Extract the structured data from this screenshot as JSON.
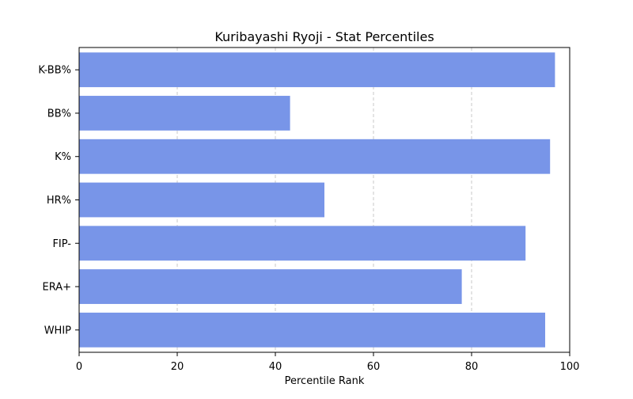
{
  "chart_data": {
    "type": "bar",
    "orientation": "horizontal",
    "title": "Kuribayashi Ryoji - Stat Percentiles",
    "xlabel": "Percentile Rank",
    "ylabel": "",
    "xlim": [
      0,
      100
    ],
    "xticks": [
      0,
      20,
      40,
      60,
      80,
      100
    ],
    "grid": {
      "x": true,
      "y": false,
      "style": "dashed"
    },
    "bar_color": "#7895e8",
    "categories": [
      "K-BB%",
      "BB%",
      "K%",
      "HR%",
      "FIP-",
      "ERA+",
      "WHIP"
    ],
    "values": [
      97,
      43,
      96,
      50,
      91,
      78,
      95
    ]
  }
}
